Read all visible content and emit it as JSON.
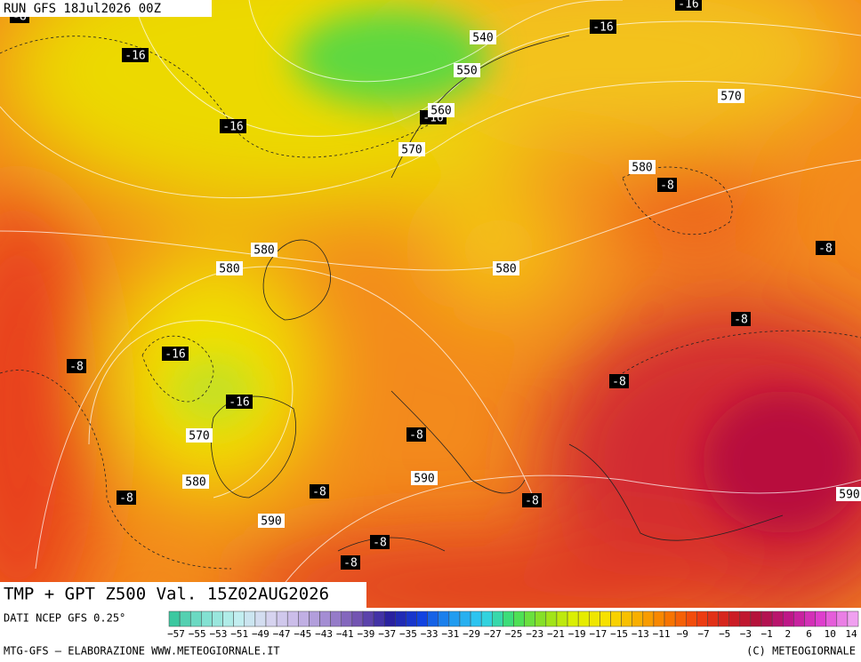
{
  "header": {
    "run": "RUN GFS 18Jul2026 00Z",
    "title": "TMP + GPT Z500 Val. 15Z02AUG2026"
  },
  "map": {
    "temperature_labels": [
      "-8",
      "-16",
      "-16",
      "-16",
      "-16",
      "-16",
      "-8",
      "-8",
      "-8",
      "-16",
      "-8",
      "-8",
      "-16",
      "-8",
      "-8",
      "-8",
      "-8",
      "-8",
      "-8"
    ],
    "height_labels": [
      "540",
      "550",
      "560",
      "570",
      "570",
      "580",
      "580",
      "580",
      "580",
      "570",
      "590",
      "580",
      "590",
      "590"
    ]
  },
  "legend": {
    "source": "DATI NCEP GFS 0.25°",
    "scale": [
      "−57",
      "−55",
      "−53",
      "−51",
      "−49",
      "−47",
      "−45",
      "−43",
      "−41",
      "−39",
      "−37",
      "−35",
      "−33",
      "−31",
      "−29",
      "−27",
      "−25",
      "−23",
      "−21",
      "−19",
      "−17",
      "−15",
      "−13",
      "−11",
      "−9",
      "−7",
      "−5",
      "−3",
      "−1",
      "2",
      "6",
      "10",
      "14"
    ]
  },
  "footer": {
    "credit": "MTG-GFS – ELABORAZIONE WWW.METEOGIORNALE.IT",
    "copyright": "(C) METEOGIORNALE"
  }
}
